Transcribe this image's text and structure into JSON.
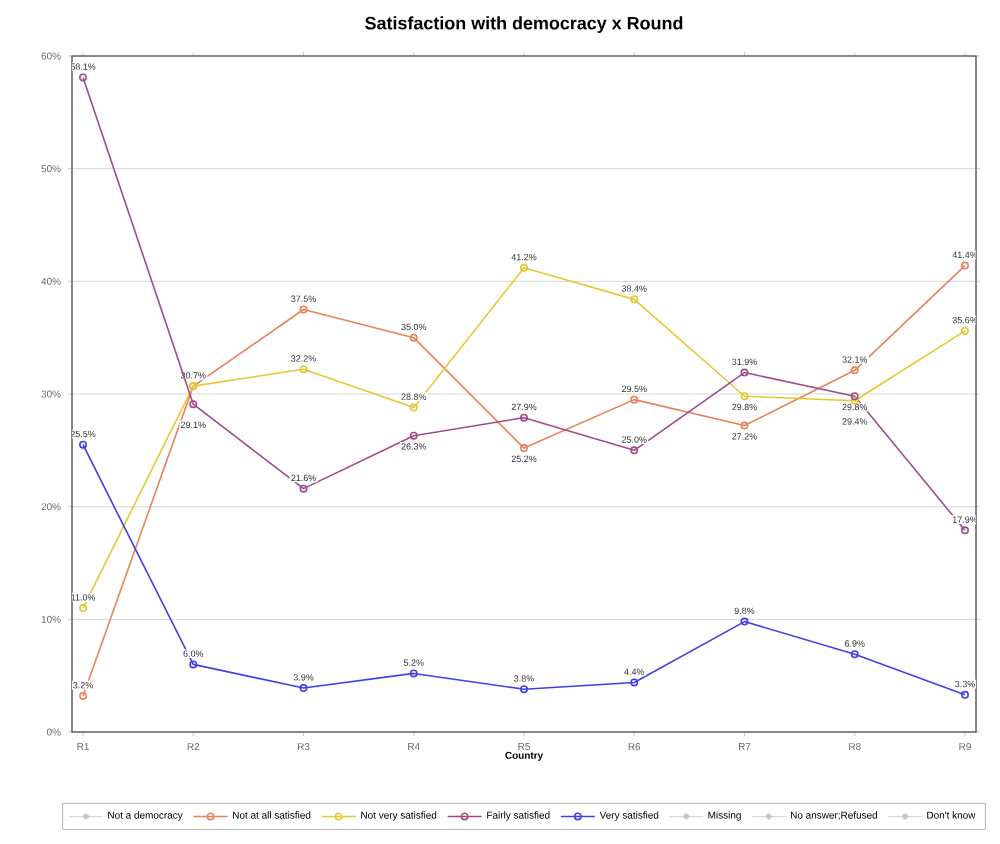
{
  "chart_data": {
    "type": "line",
    "title": "Satisfaction with democracy x Round",
    "xlabel": "Country",
    "categories": [
      "R1",
      "R2",
      "R3",
      "R4",
      "R5",
      "R6",
      "R7",
      "R8",
      "R9"
    ],
    "ylim": [
      0,
      60
    ],
    "yticks": [
      {
        "value": 0,
        "label": "0%"
      },
      {
        "value": 10,
        "label": "10%"
      },
      {
        "value": 20,
        "label": "20%"
      },
      {
        "value": 30,
        "label": "30%"
      },
      {
        "value": 40,
        "label": "40%"
      },
      {
        "value": 50,
        "label": "50%"
      },
      {
        "value": 60,
        "label": "60%"
      }
    ],
    "grid": "y",
    "legend": "bottom",
    "marker": "circle",
    "series": [
      {
        "name": "Not a democracy",
        "color": "#c8c8c8",
        "values": [
          null,
          null,
          null,
          null,
          null,
          null,
          null,
          null,
          null
        ]
      },
      {
        "name": "Not at all satisfied",
        "color": "#e8825a",
        "values": [
          3.2,
          30.7,
          37.5,
          35.0,
          25.2,
          29.5,
          27.2,
          32.1,
          41.4
        ],
        "value_labels": [
          "3.2%",
          "30.7%",
          "37.5%",
          "35.0%",
          "25.2%",
          "29.5%",
          "27.2%",
          "32.1%",
          "41.4%"
        ]
      },
      {
        "name": "Not very satisfied",
        "color": "#e6c832",
        "values": [
          11.0,
          30.7,
          32.2,
          28.8,
          41.2,
          38.4,
          29.8,
          29.4,
          35.6
        ],
        "value_labels": [
          "11.0%",
          null,
          "32.2%",
          "28.8%",
          "41.2%",
          "38.4%",
          "29.8%",
          "29.4%",
          "35.6%"
        ]
      },
      {
        "name": "Fairly satisfied",
        "color": "#a04b8c",
        "values": [
          58.1,
          29.1,
          21.6,
          26.3,
          27.9,
          25.0,
          31.9,
          29.8,
          17.9
        ],
        "value_labels": [
          "58.1%",
          "29.1%",
          "21.6%",
          "26.3%",
          "27.9%",
          "25.0%",
          "31.9%",
          "29.8%",
          "17.9%"
        ]
      },
      {
        "name": "Very satisfied",
        "color": "#4040e6",
        "values": [
          25.5,
          6.0,
          3.9,
          5.2,
          3.8,
          4.4,
          9.8,
          6.9,
          3.3
        ],
        "value_labels": [
          "25.5%",
          "6.0%",
          "3.9%",
          "5.2%",
          "3.8%",
          "4.4%",
          "9.8%",
          "6.9%",
          "3.3%"
        ]
      },
      {
        "name": "Missing",
        "color": "#c8c8c8",
        "values": [
          null,
          null,
          null,
          null,
          null,
          null,
          null,
          null,
          null
        ]
      },
      {
        "name": "No answer;Refused",
        "color": "#c8c8c8",
        "values": [
          null,
          null,
          null,
          null,
          null,
          null,
          null,
          null,
          null
        ]
      },
      {
        "name": "Don't know",
        "color": "#c8c8c8",
        "values": [
          null,
          null,
          null,
          null,
          null,
          null,
          null,
          null,
          null
        ]
      }
    ]
  }
}
